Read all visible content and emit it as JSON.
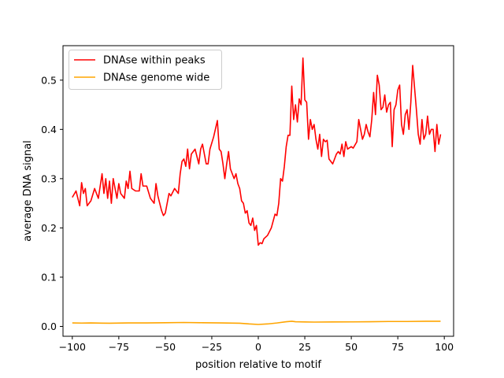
{
  "chart_data": {
    "type": "line",
    "title": "",
    "xlabel": "position relative to motif",
    "ylabel": "average DNA signal",
    "xlim": [
      -105,
      105
    ],
    "ylim": [
      -0.02,
      0.57
    ],
    "xticks": [
      -100,
      -75,
      -50,
      -25,
      0,
      25,
      50,
      75,
      100
    ],
    "xtick_labels": [
      "−100",
      "−75",
      "−50",
      "−25",
      "0",
      "25",
      "50",
      "75",
      "100"
    ],
    "yticks": [
      0.0,
      0.1,
      0.2,
      0.3,
      0.4,
      0.5
    ],
    "ytick_labels": [
      "0.0",
      "0.1",
      "0.2",
      "0.3",
      "0.4",
      "0.5"
    ],
    "grid": false,
    "legend_position": "top-left",
    "series": [
      {
        "name": "DNAse within peaks",
        "color": "#ff0000",
        "points": [
          [
            -100,
            0.262
          ],
          [
            -98,
            0.275
          ],
          [
            -96,
            0.245
          ],
          [
            -95,
            0.292
          ],
          [
            -94,
            0.27
          ],
          [
            -93,
            0.28
          ],
          [
            -92,
            0.245
          ],
          [
            -90,
            0.255
          ],
          [
            -88,
            0.28
          ],
          [
            -86,
            0.26
          ],
          [
            -84,
            0.31
          ],
          [
            -83,
            0.27
          ],
          [
            -82,
            0.3
          ],
          [
            -81,
            0.26
          ],
          [
            -80,
            0.295
          ],
          [
            -79,
            0.25
          ],
          [
            -78,
            0.3
          ],
          [
            -77,
            0.28
          ],
          [
            -76,
            0.26
          ],
          [
            -75,
            0.29
          ],
          [
            -74,
            0.27
          ],
          [
            -72,
            0.26
          ],
          [
            -71,
            0.295
          ],
          [
            -70,
            0.28
          ],
          [
            -69,
            0.315
          ],
          [
            -68,
            0.28
          ],
          [
            -66,
            0.275
          ],
          [
            -64,
            0.275
          ],
          [
            -63,
            0.31
          ],
          [
            -62,
            0.285
          ],
          [
            -60,
            0.285
          ],
          [
            -58,
            0.26
          ],
          [
            -56,
            0.25
          ],
          [
            -55,
            0.29
          ],
          [
            -54,
            0.265
          ],
          [
            -52,
            0.235
          ],
          [
            -51,
            0.225
          ],
          [
            -50,
            0.23
          ],
          [
            -48,
            0.27
          ],
          [
            -47,
            0.265
          ],
          [
            -45,
            0.28
          ],
          [
            -43,
            0.27
          ],
          [
            -42,
            0.31
          ],
          [
            -41,
            0.335
          ],
          [
            -40,
            0.34
          ],
          [
            -39,
            0.325
          ],
          [
            -38,
            0.36
          ],
          [
            -37,
            0.32
          ],
          [
            -36,
            0.35
          ],
          [
            -34,
            0.36
          ],
          [
            -32,
            0.33
          ],
          [
            -31,
            0.36
          ],
          [
            -30,
            0.37
          ],
          [
            -29,
            0.35
          ],
          [
            -28,
            0.33
          ],
          [
            -27,
            0.33
          ],
          [
            -26,
            0.36
          ],
          [
            -24,
            0.385
          ],
          [
            -22,
            0.418
          ],
          [
            -21,
            0.36
          ],
          [
            -20,
            0.355
          ],
          [
            -19,
            0.33
          ],
          [
            -18,
            0.3
          ],
          [
            -17,
            0.33
          ],
          [
            -16,
            0.355
          ],
          [
            -15,
            0.32
          ],
          [
            -14,
            0.31
          ],
          [
            -13,
            0.3
          ],
          [
            -12,
            0.31
          ],
          [
            -11,
            0.29
          ],
          [
            -10,
            0.28
          ],
          [
            -9,
            0.255
          ],
          [
            -8,
            0.25
          ],
          [
            -7,
            0.23
          ],
          [
            -6,
            0.235
          ],
          [
            -5,
            0.21
          ],
          [
            -4,
            0.205
          ],
          [
            -3,
            0.22
          ],
          [
            -2,
            0.195
          ],
          [
            -1,
            0.205
          ],
          [
            0,
            0.165
          ],
          [
            1,
            0.17
          ],
          [
            2,
            0.168
          ],
          [
            3,
            0.178
          ],
          [
            5,
            0.185
          ],
          [
            7,
            0.2
          ],
          [
            9,
            0.228
          ],
          [
            10,
            0.225
          ],
          [
            11,
            0.25
          ],
          [
            12,
            0.3
          ],
          [
            13,
            0.295
          ],
          [
            14,
            0.325
          ],
          [
            15,
            0.365
          ],
          [
            16,
            0.388
          ],
          [
            17,
            0.388
          ],
          [
            18,
            0.488
          ],
          [
            19,
            0.42
          ],
          [
            20,
            0.45
          ],
          [
            21,
            0.415
          ],
          [
            22,
            0.462
          ],
          [
            23,
            0.45
          ],
          [
            24,
            0.545
          ],
          [
            25,
            0.46
          ],
          [
            26,
            0.455
          ],
          [
            27,
            0.38
          ],
          [
            28,
            0.42
          ],
          [
            29,
            0.4
          ],
          [
            30,
            0.41
          ],
          [
            31,
            0.38
          ],
          [
            32,
            0.36
          ],
          [
            33,
            0.39
          ],
          [
            34,
            0.345
          ],
          [
            35,
            0.38
          ],
          [
            36,
            0.375
          ],
          [
            37,
            0.378
          ],
          [
            38,
            0.34
          ],
          [
            40,
            0.33
          ],
          [
            41,
            0.34
          ],
          [
            42,
            0.35
          ],
          [
            43,
            0.355
          ],
          [
            44,
            0.35
          ],
          [
            45,
            0.37
          ],
          [
            46,
            0.345
          ],
          [
            47,
            0.375
          ],
          [
            48,
            0.36
          ],
          [
            50,
            0.365
          ],
          [
            51,
            0.362
          ],
          [
            53,
            0.375
          ],
          [
            54,
            0.42
          ],
          [
            55,
            0.4
          ],
          [
            56,
            0.38
          ],
          [
            57,
            0.39
          ],
          [
            58,
            0.41
          ],
          [
            59,
            0.395
          ],
          [
            60,
            0.385
          ],
          [
            61,
            0.42
          ],
          [
            62,
            0.475
          ],
          [
            63,
            0.43
          ],
          [
            64,
            0.51
          ],
          [
            65,
            0.49
          ],
          [
            66,
            0.44
          ],
          [
            67,
            0.445
          ],
          [
            68,
            0.47
          ],
          [
            69,
            0.435
          ],
          [
            70,
            0.45
          ],
          [
            71,
            0.455
          ],
          [
            72,
            0.365
          ],
          [
            73,
            0.44
          ],
          [
            74,
            0.45
          ],
          [
            75,
            0.48
          ],
          [
            76,
            0.49
          ],
          [
            77,
            0.41
          ],
          [
            78,
            0.39
          ],
          [
            79,
            0.43
          ],
          [
            80,
            0.44
          ],
          [
            81,
            0.4
          ],
          [
            82,
            0.455
          ],
          [
            83,
            0.53
          ],
          [
            84,
            0.485
          ],
          [
            85,
            0.44
          ],
          [
            86,
            0.39
          ],
          [
            87,
            0.37
          ],
          [
            88,
            0.42
          ],
          [
            89,
            0.38
          ],
          [
            90,
            0.39
          ],
          [
            91,
            0.427
          ],
          [
            92,
            0.39
          ],
          [
            93,
            0.4
          ],
          [
            94,
            0.4
          ],
          [
            95,
            0.355
          ],
          [
            96,
            0.41
          ],
          [
            97,
            0.37
          ],
          [
            98,
            0.39
          ]
        ]
      },
      {
        "name": "DNAse genome wide",
        "color": "#ffa500",
        "points": [
          [
            -100,
            0.007
          ],
          [
            -95,
            0.0068
          ],
          [
            -90,
            0.007
          ],
          [
            -80,
            0.0065
          ],
          [
            -70,
            0.007
          ],
          [
            -60,
            0.007
          ],
          [
            -50,
            0.0075
          ],
          [
            -40,
            0.008
          ],
          [
            -30,
            0.0075
          ],
          [
            -20,
            0.007
          ],
          [
            -10,
            0.0065
          ],
          [
            -5,
            0.005
          ],
          [
            0,
            0.004
          ],
          [
            5,
            0.005
          ],
          [
            10,
            0.007
          ],
          [
            15,
            0.0095
          ],
          [
            18,
            0.0105
          ],
          [
            20,
            0.0095
          ],
          [
            25,
            0.009
          ],
          [
            30,
            0.0088
          ],
          [
            40,
            0.009
          ],
          [
            50,
            0.0092
          ],
          [
            60,
            0.0095
          ],
          [
            70,
            0.01
          ],
          [
            80,
            0.01
          ],
          [
            90,
            0.0105
          ],
          [
            98,
            0.0105
          ]
        ]
      }
    ]
  }
}
